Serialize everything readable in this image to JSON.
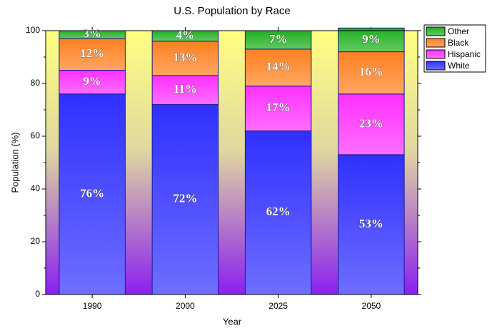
{
  "chart_data": {
    "type": "stacked_bar",
    "title": "U.S. Population by Race",
    "x_label": "Year",
    "y_label": "Population (%)",
    "categories": [
      "1990",
      "2000",
      "2025",
      "2050"
    ],
    "series": [
      {
        "name": "White",
        "color": "#3030ff",
        "values": [
          76,
          72,
          62,
          53
        ],
        "value_labels": [
          "76%",
          "72%",
          "62%",
          "53%"
        ]
      },
      {
        "name": "Hispanic",
        "color": "#ff30ff",
        "values": [
          9,
          11,
          17,
          23
        ],
        "value_labels": [
          "9%",
          "11%",
          "17%",
          "23%"
        ]
      },
      {
        "name": "Black",
        "color": "#ff8020",
        "values": [
          12,
          13,
          14,
          16
        ],
        "value_labels": [
          "12%",
          "13%",
          "14%",
          "16%"
        ]
      },
      {
        "name": "Other",
        "color": "#20b020",
        "values": [
          3,
          4,
          7,
          9
        ],
        "value_labels": [
          "3%",
          "4%",
          "7%",
          "9%"
        ]
      }
    ],
    "ylim": [
      0,
      100
    ],
    "yticks": [
      0,
      20,
      40,
      60,
      80,
      100
    ],
    "legend_position": "top-right"
  }
}
